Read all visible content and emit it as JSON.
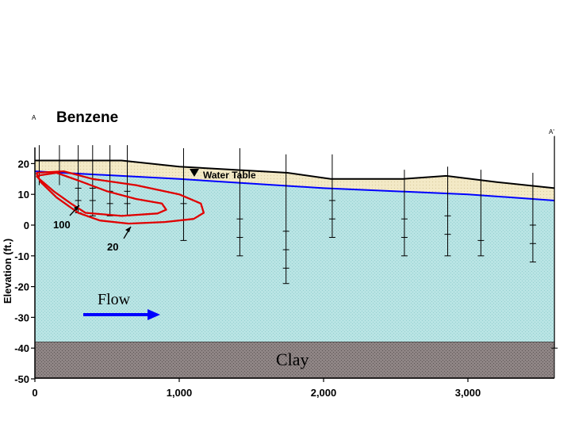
{
  "title": "Benzene",
  "section_start": "A",
  "section_end": "A'",
  "ylabel": "Elevation (ft.)",
  "water_table_label": "Water Table",
  "flow_label": "Flow",
  "clay_label": "Clay",
  "contour_labels": [
    "100",
    "20"
  ],
  "x_ticks": [
    "0",
    "1,000",
    "2,000",
    "3,000"
  ],
  "y_ticks": [
    "20",
    "10",
    "0",
    "-10",
    "-20",
    "-30",
    "-40",
    "-50"
  ],
  "colors": {
    "aquifer": "#b7e3e3",
    "unsaturated": "#f2e8c4",
    "clay": "#8a7f7f",
    "water_table": "#0000ff",
    "contour": "#e00000",
    "flow_arrow": "#0000ff"
  },
  "chart_data": {
    "type": "cross-section",
    "x_axis": {
      "range": [
        0,
        3600
      ],
      "unit": "ft",
      "ticks": [
        0,
        1000,
        2000,
        3000
      ]
    },
    "y_axis": {
      "label": "Elevation (ft.)",
      "range": [
        -50,
        20
      ],
      "ticks": [
        20,
        10,
        0,
        -10,
        -20,
        -30,
        -40,
        -50
      ]
    },
    "ground_surface": [
      [
        0,
        21
      ],
      [
        600,
        21
      ],
      [
        1000,
        19
      ],
      [
        1750,
        17
      ],
      [
        2050,
        15
      ],
      [
        2550,
        15
      ],
      [
        2850,
        16
      ],
      [
        3200,
        14
      ],
      [
        3600,
        12
      ]
    ],
    "water_table": [
      [
        0,
        17.5
      ],
      [
        1000,
        15
      ],
      [
        2000,
        12
      ],
      [
        3000,
        10
      ],
      [
        3600,
        8
      ]
    ],
    "clay_top": -38,
    "wells": [
      {
        "x": 30,
        "top": 26,
        "bottom": 13,
        "screens": []
      },
      {
        "x": 170,
        "top": 26,
        "bottom": 13,
        "screens": []
      },
      {
        "x": 300,
        "top": 26,
        "bottom": 4,
        "screens": [
          12,
          8
        ]
      },
      {
        "x": 400,
        "top": 26,
        "bottom": 3,
        "screens": [
          12,
          8
        ]
      },
      {
        "x": 520,
        "top": 26,
        "bottom": 3,
        "screens": [
          11,
          7
        ]
      },
      {
        "x": 640,
        "top": 26,
        "bottom": 3,
        "screens": [
          11,
          7
        ]
      },
      {
        "x": 1030,
        "top": 25,
        "bottom": -5,
        "screens": [
          7
        ]
      },
      {
        "x": 1420,
        "top": 25,
        "bottom": -10,
        "screens": [
          2,
          -4
        ]
      },
      {
        "x": 1740,
        "top": 23,
        "bottom": -19,
        "screens": [
          -2,
          -8,
          -14
        ]
      },
      {
        "x": 2060,
        "top": 23,
        "bottom": -4,
        "screens": [
          8,
          2
        ]
      },
      {
        "x": 2560,
        "top": 18,
        "bottom": -10,
        "screens": [
          2,
          -4
        ]
      },
      {
        "x": 2860,
        "top": 19,
        "bottom": -10,
        "screens": [
          3,
          -3
        ]
      },
      {
        "x": 3090,
        "top": 18,
        "bottom": -10,
        "screens": [
          -5
        ]
      },
      {
        "x": 3450,
        "top": 17,
        "bottom": -12,
        "screens": [
          0,
          -6
        ]
      },
      {
        "x": 3600,
        "top": 29,
        "bottom": -40,
        "screens": []
      }
    ],
    "contours": [
      {
        "value": 100,
        "points": [
          [
            10,
            16
          ],
          [
            150,
            17
          ],
          [
            300,
            14.5
          ],
          [
            500,
            11
          ],
          [
            700,
            8.5
          ],
          [
            880,
            7
          ],
          [
            910,
            5
          ],
          [
            850,
            3.8
          ],
          [
            600,
            3
          ],
          [
            350,
            4
          ],
          [
            250,
            7
          ],
          [
            130,
            11
          ],
          [
            30,
            15
          ],
          [
            10,
            16
          ]
        ]
      },
      {
        "value": 20,
        "points": [
          [
            10,
            17
          ],
          [
            200,
            17.5
          ],
          [
            400,
            15
          ],
          [
            700,
            13
          ],
          [
            1000,
            10
          ],
          [
            1150,
            7
          ],
          [
            1170,
            4
          ],
          [
            1100,
            2
          ],
          [
            900,
            1
          ],
          [
            650,
            0.5
          ],
          [
            450,
            1.5
          ],
          [
            300,
            4
          ],
          [
            150,
            9
          ],
          [
            40,
            14
          ],
          [
            10,
            17
          ]
        ]
      }
    ]
  }
}
